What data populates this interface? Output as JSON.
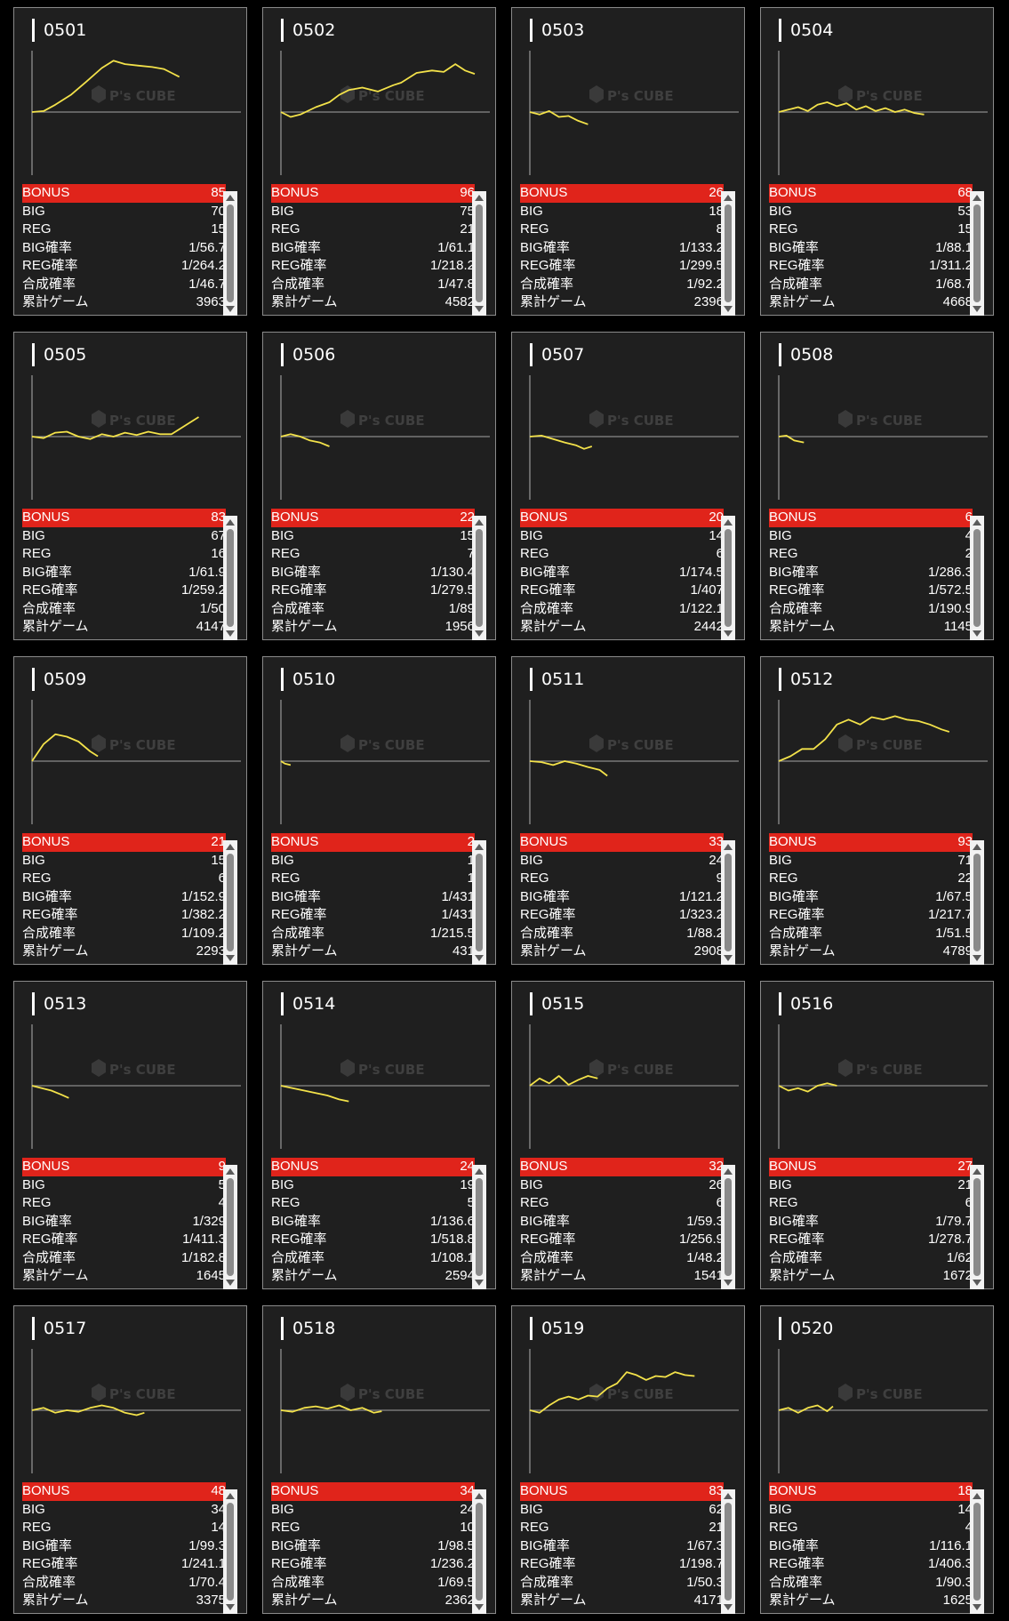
{
  "labels": {
    "bonus": "BONUS",
    "big": "BIG",
    "reg": "REG",
    "big_rate": "BIG確率",
    "reg_rate": "REG確率",
    "combined_rate": "合成確率",
    "total_games": "累計ゲーム"
  },
  "watermark": {
    "brand": "P's CUBE"
  },
  "colors": {
    "line": "#f3e24a",
    "bonus_bar": "#e0241b",
    "panel": "#1f1f1f",
    "border": "#8a8a8a"
  },
  "machines": [
    {
      "id": "0501",
      "bonus": "85",
      "big": "70",
      "reg": "15",
      "big_rate": "1/56.7",
      "reg_rate": "1/264.2",
      "combined_rate": "1/46.7",
      "total_games": "3963",
      "graph": [
        [
          0,
          0
        ],
        [
          0.06,
          0.02
        ],
        [
          0.12,
          0.15
        ],
        [
          0.2,
          0.35
        ],
        [
          0.28,
          0.62
        ],
        [
          0.36,
          0.9
        ],
        [
          0.42,
          1.05
        ],
        [
          0.48,
          0.98
        ],
        [
          0.55,
          0.95
        ],
        [
          0.62,
          0.92
        ],
        [
          0.68,
          0.88
        ],
        [
          0.72,
          0.8
        ],
        [
          0.76,
          0.72
        ]
      ]
    },
    {
      "id": "0502",
      "bonus": "96",
      "big": "75",
      "reg": "21",
      "big_rate": "1/61.1",
      "reg_rate": "1/218.2",
      "combined_rate": "1/47.8",
      "total_games": "4582",
      "graph": [
        [
          0,
          0
        ],
        [
          0.05,
          -0.1
        ],
        [
          0.1,
          -0.05
        ],
        [
          0.18,
          0.1
        ],
        [
          0.25,
          0.2
        ],
        [
          0.3,
          0.35
        ],
        [
          0.35,
          0.45
        ],
        [
          0.42,
          0.5
        ],
        [
          0.5,
          0.42
        ],
        [
          0.58,
          0.55
        ],
        [
          0.62,
          0.6
        ],
        [
          0.7,
          0.8
        ],
        [
          0.78,
          0.85
        ],
        [
          0.84,
          0.82
        ],
        [
          0.9,
          0.98
        ],
        [
          0.95,
          0.85
        ],
        [
          1.0,
          0.78
        ]
      ]
    },
    {
      "id": "0503",
      "bonus": "26",
      "big": "18",
      "reg": "8",
      "big_rate": "1/133.2",
      "reg_rate": "1/299.5",
      "combined_rate": "1/92.2",
      "total_games": "2396",
      "graph": [
        [
          0,
          0
        ],
        [
          0.05,
          -0.05
        ],
        [
          0.1,
          0.02
        ],
        [
          0.15,
          -0.1
        ],
        [
          0.2,
          -0.08
        ],
        [
          0.25,
          -0.18
        ],
        [
          0.3,
          -0.25
        ]
      ]
    },
    {
      "id": "0504",
      "bonus": "68",
      "big": "53",
      "reg": "15",
      "big_rate": "1/88.1",
      "reg_rate": "1/311.2",
      "combined_rate": "1/68.7",
      "total_games": "4668",
      "graph": [
        [
          0,
          0
        ],
        [
          0.05,
          0.05
        ],
        [
          0.1,
          0.1
        ],
        [
          0.15,
          0.02
        ],
        [
          0.2,
          0.15
        ],
        [
          0.25,
          0.2
        ],
        [
          0.3,
          0.12
        ],
        [
          0.35,
          0.18
        ],
        [
          0.4,
          0.05
        ],
        [
          0.45,
          0.12
        ],
        [
          0.5,
          0.02
        ],
        [
          0.55,
          0.08
        ],
        [
          0.6,
          0.0
        ],
        [
          0.65,
          0.05
        ],
        [
          0.7,
          -0.02
        ],
        [
          0.75,
          -0.05
        ]
      ]
    },
    {
      "id": "0505",
      "bonus": "83",
      "big": "67",
      "reg": "16",
      "big_rate": "1/61.9",
      "reg_rate": "1/259.2",
      "combined_rate": "1/50",
      "total_games": "4147",
      "graph": [
        [
          0,
          0
        ],
        [
          0.06,
          -0.03
        ],
        [
          0.12,
          0.08
        ],
        [
          0.18,
          0.1
        ],
        [
          0.24,
          0.0
        ],
        [
          0.3,
          -0.05
        ],
        [
          0.36,
          0.05
        ],
        [
          0.42,
          0.0
        ],
        [
          0.48,
          0.08
        ],
        [
          0.54,
          0.03
        ],
        [
          0.6,
          0.1
        ],
        [
          0.66,
          0.05
        ],
        [
          0.72,
          0.05
        ],
        [
          0.8,
          0.25
        ],
        [
          0.86,
          0.4
        ]
      ]
    },
    {
      "id": "0506",
      "bonus": "22",
      "big": "15",
      "reg": "7",
      "big_rate": "1/130.4",
      "reg_rate": "1/279.5",
      "combined_rate": "1/89",
      "total_games": "1956",
      "graph": [
        [
          0,
          0
        ],
        [
          0.05,
          0.05
        ],
        [
          0.1,
          0.0
        ],
        [
          0.15,
          -0.08
        ],
        [
          0.2,
          -0.12
        ],
        [
          0.25,
          -0.2
        ]
      ]
    },
    {
      "id": "0507",
      "bonus": "20",
      "big": "14",
      "reg": "6",
      "big_rate": "1/174.5",
      "reg_rate": "1/407",
      "combined_rate": "1/122.1",
      "total_games": "2442",
      "graph": [
        [
          0,
          0
        ],
        [
          0.06,
          0.02
        ],
        [
          0.12,
          -0.05
        ],
        [
          0.18,
          -0.12
        ],
        [
          0.24,
          -0.18
        ],
        [
          0.28,
          -0.25
        ],
        [
          0.32,
          -0.2
        ]
      ]
    },
    {
      "id": "0508",
      "bonus": "6",
      "big": "4",
      "reg": "2",
      "big_rate": "1/286.3",
      "reg_rate": "1/572.5",
      "combined_rate": "1/190.9",
      "total_games": "1145",
      "graph": [
        [
          0,
          0
        ],
        [
          0.04,
          0.02
        ],
        [
          0.08,
          -0.08
        ],
        [
          0.13,
          -0.12
        ]
      ]
    },
    {
      "id": "0509",
      "bonus": "21",
      "big": "15",
      "reg": "6",
      "big_rate": "1/152.9",
      "reg_rate": "1/382.2",
      "combined_rate": "1/109.2",
      "total_games": "2293",
      "graph": [
        [
          0,
          0
        ],
        [
          0.06,
          0.35
        ],
        [
          0.12,
          0.55
        ],
        [
          0.18,
          0.5
        ],
        [
          0.24,
          0.4
        ],
        [
          0.3,
          0.2
        ],
        [
          0.34,
          0.1
        ]
      ]
    },
    {
      "id": "0510",
      "bonus": "2",
      "big": "1",
      "reg": "1",
      "big_rate": "1/431",
      "reg_rate": "1/431",
      "combined_rate": "1/215.5",
      "total_games": "431",
      "graph": [
        [
          0,
          0
        ],
        [
          0.02,
          -0.05
        ],
        [
          0.05,
          -0.08
        ]
      ]
    },
    {
      "id": "0511",
      "bonus": "33",
      "big": "24",
      "reg": "9",
      "big_rate": "1/121.2",
      "reg_rate": "1/323.2",
      "combined_rate": "1/88.2",
      "total_games": "2908",
      "graph": [
        [
          0,
          0
        ],
        [
          0.06,
          -0.02
        ],
        [
          0.12,
          -0.08
        ],
        [
          0.18,
          0.0
        ],
        [
          0.24,
          -0.05
        ],
        [
          0.3,
          -0.12
        ],
        [
          0.36,
          -0.18
        ],
        [
          0.4,
          -0.3
        ]
      ]
    },
    {
      "id": "0512",
      "bonus": "93",
      "big": "71",
      "reg": "22",
      "big_rate": "1/67.5",
      "reg_rate": "1/217.7",
      "combined_rate": "1/51.5",
      "total_games": "4789",
      "graph": [
        [
          0,
          0
        ],
        [
          0.06,
          0.1
        ],
        [
          0.12,
          0.25
        ],
        [
          0.18,
          0.25
        ],
        [
          0.24,
          0.45
        ],
        [
          0.3,
          0.75
        ],
        [
          0.36,
          0.85
        ],
        [
          0.42,
          0.75
        ],
        [
          0.48,
          0.9
        ],
        [
          0.54,
          0.85
        ],
        [
          0.6,
          0.92
        ],
        [
          0.66,
          0.85
        ],
        [
          0.72,
          0.82
        ],
        [
          0.78,
          0.75
        ],
        [
          0.84,
          0.65
        ],
        [
          0.88,
          0.6
        ]
      ]
    },
    {
      "id": "0513",
      "bonus": "9",
      "big": "5",
      "reg": "4",
      "big_rate": "1/329",
      "reg_rate": "1/411.3",
      "combined_rate": "1/182.8",
      "total_games": "1645",
      "graph": [
        [
          0,
          0
        ],
        [
          0.05,
          -0.05
        ],
        [
          0.1,
          -0.1
        ],
        [
          0.15,
          -0.18
        ],
        [
          0.19,
          -0.25
        ]
      ]
    },
    {
      "id": "0514",
      "bonus": "24",
      "big": "19",
      "reg": "5",
      "big_rate": "1/136.6",
      "reg_rate": "1/518.8",
      "combined_rate": "1/108.1",
      "total_games": "2594",
      "graph": [
        [
          0,
          0
        ],
        [
          0.06,
          -0.05
        ],
        [
          0.12,
          -0.1
        ],
        [
          0.18,
          -0.15
        ],
        [
          0.24,
          -0.2
        ],
        [
          0.3,
          -0.28
        ],
        [
          0.35,
          -0.32
        ]
      ]
    },
    {
      "id": "0515",
      "bonus": "32",
      "big": "26",
      "reg": "6",
      "big_rate": "1/59.3",
      "reg_rate": "1/256.9",
      "combined_rate": "1/48.2",
      "total_games": "1541",
      "graph": [
        [
          0,
          0
        ],
        [
          0.05,
          0.15
        ],
        [
          0.1,
          0.05
        ],
        [
          0.15,
          0.2
        ],
        [
          0.2,
          0.02
        ],
        [
          0.25,
          0.12
        ],
        [
          0.3,
          0.2
        ],
        [
          0.35,
          0.15
        ]
      ]
    },
    {
      "id": "0516",
      "bonus": "27",
      "big": "21",
      "reg": "6",
      "big_rate": "1/79.7",
      "reg_rate": "1/278.7",
      "combined_rate": "1/62",
      "total_games": "1672",
      "graph": [
        [
          0,
          0
        ],
        [
          0.05,
          -0.1
        ],
        [
          0.1,
          -0.05
        ],
        [
          0.15,
          -0.12
        ],
        [
          0.2,
          0.0
        ],
        [
          0.25,
          0.05
        ],
        [
          0.3,
          0.0
        ]
      ]
    },
    {
      "id": "0517",
      "bonus": "48",
      "big": "34",
      "reg": "14",
      "big_rate": "1/99.3",
      "reg_rate": "1/241.1",
      "combined_rate": "1/70.4",
      "total_games": "3375",
      "graph": [
        [
          0,
          0
        ],
        [
          0.06,
          0.05
        ],
        [
          0.12,
          -0.05
        ],
        [
          0.18,
          0.0
        ],
        [
          0.24,
          -0.03
        ],
        [
          0.3,
          0.05
        ],
        [
          0.36,
          0.1
        ],
        [
          0.42,
          0.05
        ],
        [
          0.48,
          -0.05
        ],
        [
          0.54,
          -0.1
        ],
        [
          0.58,
          -0.05
        ]
      ]
    },
    {
      "id": "0518",
      "bonus": "34",
      "big": "24",
      "reg": "10",
      "big_rate": "1/98.5",
      "reg_rate": "1/236.2",
      "combined_rate": "1/69.5",
      "total_games": "2362",
      "graph": [
        [
          0,
          0
        ],
        [
          0.06,
          -0.03
        ],
        [
          0.12,
          0.05
        ],
        [
          0.18,
          0.08
        ],
        [
          0.24,
          0.03
        ],
        [
          0.3,
          0.1
        ],
        [
          0.36,
          0.0
        ],
        [
          0.42,
          0.05
        ],
        [
          0.48,
          -0.05
        ],
        [
          0.52,
          -0.02
        ]
      ]
    },
    {
      "id": "0519",
      "bonus": "83",
      "big": "62",
      "reg": "21",
      "big_rate": "1/67.3",
      "reg_rate": "1/198.7",
      "combined_rate": "1/50.3",
      "total_games": "4171",
      "graph": [
        [
          0,
          0
        ],
        [
          0.05,
          -0.05
        ],
        [
          0.1,
          0.1
        ],
        [
          0.15,
          0.22
        ],
        [
          0.2,
          0.28
        ],
        [
          0.25,
          0.22
        ],
        [
          0.3,
          0.3
        ],
        [
          0.35,
          0.28
        ],
        [
          0.4,
          0.45
        ],
        [
          0.45,
          0.55
        ],
        [
          0.5,
          0.78
        ],
        [
          0.55,
          0.72
        ],
        [
          0.6,
          0.62
        ],
        [
          0.65,
          0.7
        ],
        [
          0.7,
          0.68
        ],
        [
          0.75,
          0.78
        ],
        [
          0.8,
          0.72
        ],
        [
          0.85,
          0.7
        ]
      ]
    },
    {
      "id": "0520",
      "bonus": "18",
      "big": "14",
      "reg": "4",
      "big_rate": "1/116.1",
      "reg_rate": "1/406.3",
      "combined_rate": "1/90.3",
      "total_games": "1625",
      "graph": [
        [
          0,
          0
        ],
        [
          0.05,
          0.05
        ],
        [
          0.1,
          -0.05
        ],
        [
          0.15,
          0.05
        ],
        [
          0.2,
          0.1
        ],
        [
          0.25,
          -0.02
        ],
        [
          0.28,
          0.08
        ]
      ]
    }
  ]
}
